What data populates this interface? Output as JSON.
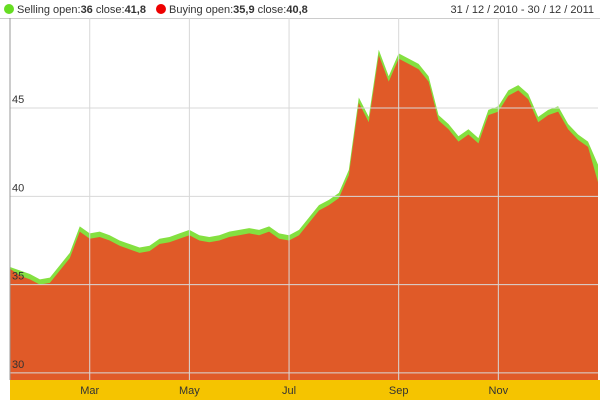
{
  "chart_data": {
    "type": "area",
    "date_range": "31 / 12 / 2010 - 30 / 12 / 2011",
    "legend_texts": {
      "open": "open:",
      "close": "close:"
    },
    "categories": [
      null,
      null,
      null,
      null,
      null,
      null,
      null,
      null,
      "Mar",
      null,
      null,
      null,
      null,
      null,
      null,
      null,
      null,
      null,
      "May",
      null,
      null,
      null,
      null,
      null,
      null,
      null,
      null,
      null,
      "Jul",
      null,
      null,
      null,
      null,
      null,
      null,
      null,
      null,
      null,
      null,
      "Sep",
      null,
      null,
      null,
      null,
      null,
      null,
      null,
      null,
      null,
      "Nov",
      null,
      null,
      null,
      null,
      null,
      null,
      null,
      null,
      null,
      null
    ],
    "series": [
      {
        "name": "Selling",
        "color": "#84e040",
        "open": 36,
        "close": {
          "value": 41.8,
          "label": "41,8"
        },
        "values": [
          36.0,
          35.8,
          35.6,
          35.3,
          35.4,
          36.1,
          36.8,
          38.3,
          37.9,
          38.0,
          37.8,
          37.5,
          37.3,
          37.1,
          37.2,
          37.6,
          37.7,
          37.9,
          38.1,
          37.8,
          37.7,
          37.8,
          38.0,
          38.1,
          38.2,
          38.1,
          38.3,
          37.9,
          37.8,
          38.1,
          38.8,
          39.5,
          39.8,
          40.2,
          41.5,
          45.6,
          44.5,
          48.3,
          46.8,
          48.1,
          47.8,
          47.5,
          46.8,
          44.6,
          44.1,
          43.4,
          43.8,
          43.3,
          44.9,
          45.1,
          46.0,
          46.3,
          45.8,
          44.5,
          44.9,
          45.1,
          44.1,
          43.5,
          43.1,
          41.8
        ]
      },
      {
        "name": "Buying",
        "color": "#e05a28",
        "open": {
          "value": 35.9,
          "label": "35,9"
        },
        "close": {
          "value": 40.8,
          "label": "40,8"
        },
        "values": [
          35.9,
          35.5,
          35.3,
          35.0,
          35.1,
          35.8,
          36.5,
          38.0,
          37.6,
          37.7,
          37.5,
          37.2,
          37.0,
          36.8,
          36.9,
          37.3,
          37.4,
          37.6,
          37.8,
          37.5,
          37.4,
          37.5,
          37.7,
          37.8,
          37.9,
          37.8,
          38.0,
          37.6,
          37.5,
          37.8,
          38.5,
          39.2,
          39.5,
          39.9,
          41.2,
          45.3,
          44.2,
          48.0,
          46.5,
          47.8,
          47.5,
          47.2,
          46.5,
          44.3,
          43.8,
          43.1,
          43.5,
          43.0,
          44.6,
          44.8,
          45.7,
          46.0,
          45.5,
          44.2,
          44.6,
          44.8,
          43.8,
          43.2,
          42.8,
          40.8
        ]
      }
    ],
    "ylim": [
      29.6,
      50.1
    ],
    "yticks": [
      30,
      35,
      40,
      45
    ],
    "grid": true
  }
}
